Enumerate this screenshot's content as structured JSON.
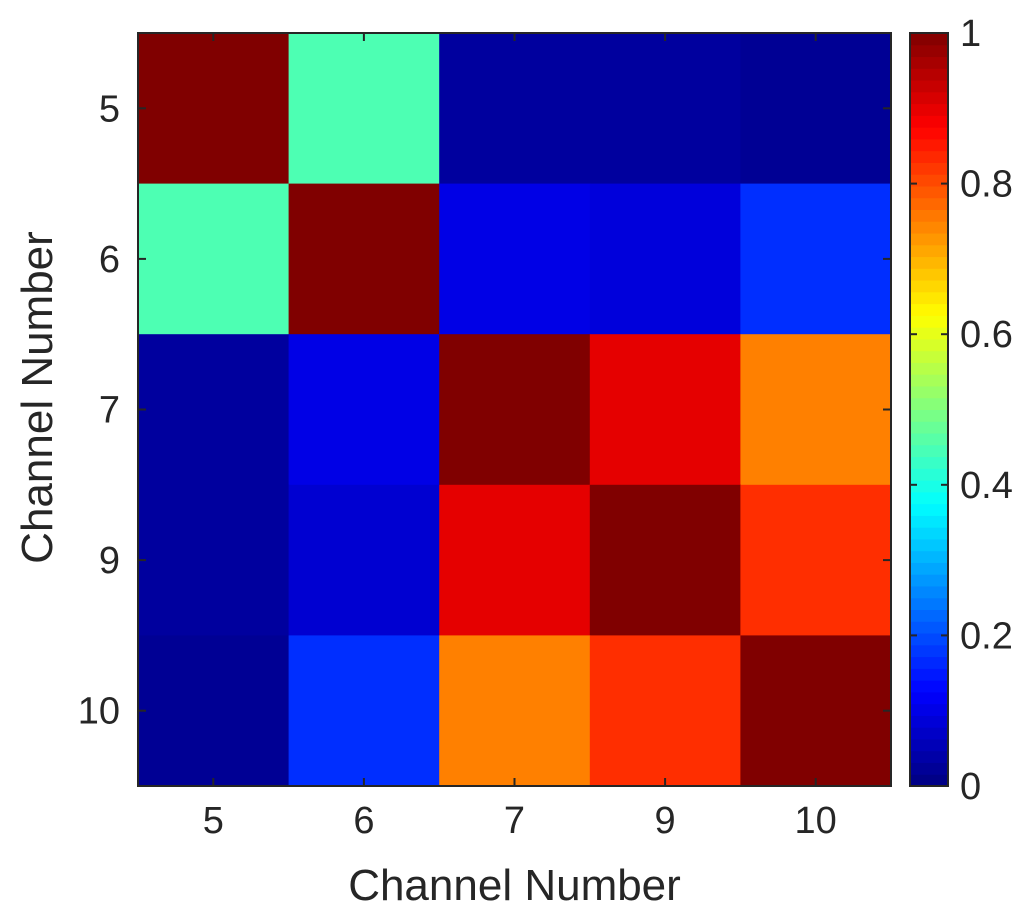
{
  "chart_data": {
    "type": "heatmap",
    "title": "",
    "xlabel": "Channel Number",
    "ylabel": "Channel Number",
    "x_categories": [
      "5",
      "6",
      "7",
      "9",
      "10"
    ],
    "y_categories": [
      "5",
      "6",
      "7",
      "9",
      "10"
    ],
    "values": [
      [
        1.0,
        0.45,
        0.03,
        0.03,
        0.02
      ],
      [
        0.45,
        1.0,
        0.1,
        0.09,
        0.17
      ],
      [
        0.03,
        0.1,
        1.0,
        0.9,
        0.75
      ],
      [
        0.03,
        0.08,
        0.9,
        1.0,
        0.83
      ],
      [
        0.02,
        0.17,
        0.75,
        0.83,
        1.0
      ]
    ],
    "colorbar": {
      "colormap": "jet",
      "range": [
        0,
        1
      ],
      "ticks": [
        0,
        0.2,
        0.4,
        0.6,
        0.8,
        1
      ],
      "tick_labels": [
        "0",
        "0.2",
        "0.4",
        "0.6",
        "0.8",
        "1"
      ],
      "placement": "right"
    },
    "grid": false
  }
}
